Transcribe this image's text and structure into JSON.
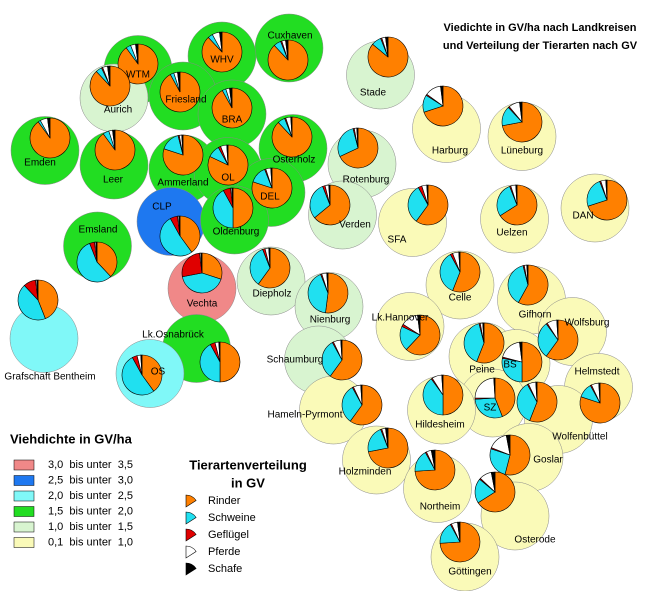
{
  "title_lines": [
    "Viedichte in GV/ha nach Landkreisen",
    "und Verteilung der Tierarten nach GV"
  ],
  "density_legend": {
    "title": "Viehdichte in GV/ha",
    "classes": [
      {
        "label": "3,0  bis unter  3,5",
        "color": "#f08888"
      },
      {
        "label": "2,5  bis unter  3,0",
        "color": "#1e78f0"
      },
      {
        "label": "2,0  bis unter  2,5",
        "color": "#80f8f8"
      },
      {
        "label": "1,5  bis unter  2,0",
        "color": "#22dd22"
      },
      {
        "label": "1,0  bis unter  1,5",
        "color": "#d8f4d0"
      },
      {
        "label": "0,1  bis unter  1,0",
        "color": "#fafab8"
      }
    ]
  },
  "species_legend": {
    "title_lines": [
      "Tierartenverteilung",
      "in GV"
    ],
    "species": [
      {
        "name": "Rinder",
        "color": "#ff8000"
      },
      {
        "name": "Schweine",
        "color": "#20e0f0"
      },
      {
        "name": "Geflügel",
        "color": "#e00000"
      },
      {
        "name": "Pferde",
        "color": "#ffffff"
      },
      {
        "name": "Schafe",
        "color": "#000000"
      }
    ]
  },
  "districts": [
    {
      "name": "Cuxhaven",
      "class": 3,
      "shares": [
        88,
        6,
        1,
        3,
        2
      ]
    },
    {
      "name": "WHV",
      "class": 3,
      "shares": [
        88,
        4,
        0,
        6,
        2
      ]
    },
    {
      "name": "WTM",
      "class": 3,
      "shares": [
        90,
        4,
        0,
        4,
        2
      ]
    },
    {
      "name": "Friesland",
      "class": 3,
      "shares": [
        92,
        3,
        0,
        3,
        2
      ]
    },
    {
      "name": "Aurich",
      "class": 4,
      "shares": [
        88,
        5,
        1,
        4,
        2
      ]
    },
    {
      "name": "Stade",
      "class": 4,
      "shares": [
        86,
        8,
        1,
        3,
        2
      ]
    },
    {
      "name": "BRA",
      "class": 3,
      "shares": [
        92,
        3,
        0,
        3,
        2
      ]
    },
    {
      "name": "Emden",
      "class": 3,
      "shares": [
        90,
        2,
        0,
        6,
        2
      ]
    },
    {
      "name": "Harburg",
      "class": 5,
      "shares": [
        70,
        14,
        1,
        13,
        2
      ]
    },
    {
      "name": "Lüneburg",
      "class": 5,
      "shares": [
        72,
        16,
        1,
        9,
        2
      ]
    },
    {
      "name": "Osterholz",
      "class": 3,
      "shares": [
        88,
        6,
        1,
        4,
        1
      ]
    },
    {
      "name": "Rotenburg",
      "class": 4,
      "shares": [
        68,
        28,
        1,
        2,
        1
      ]
    },
    {
      "name": "Leer",
      "class": 3,
      "shares": [
        90,
        5,
        0,
        3,
        2
      ]
    },
    {
      "name": "Ammerland",
      "class": 3,
      "shares": [
        80,
        16,
        1,
        2,
        1
      ]
    },
    {
      "name": "OL",
      "class": 3,
      "shares": [
        82,
        10,
        2,
        5,
        1
      ]
    },
    {
      "name": "DEL",
      "class": 3,
      "shares": [
        80,
        14,
        1,
        4,
        1
      ]
    },
    {
      "name": "CLP",
      "class": 1,
      "shares": [
        40,
        52,
        6,
        1,
        1
      ]
    },
    {
      "name": "Emsland",
      "class": 3,
      "shares": [
        38,
        56,
        4,
        1,
        1
      ]
    },
    {
      "name": "Oldenburg",
      "class": 3,
      "shares": [
        50,
        42,
        6,
        1,
        1
      ]
    },
    {
      "name": "Verden",
      "class": 4,
      "shares": [
        64,
        30,
        2,
        3,
        1
      ]
    },
    {
      "name": "SFA",
      "class": 5,
      "shares": [
        60,
        32,
        3,
        4,
        1
      ]
    },
    {
      "name": "Uelzen",
      "class": 5,
      "shares": [
        66,
        28,
        1,
        4,
        1
      ]
    },
    {
      "name": "DAN",
      "class": 5,
      "shares": [
        70,
        24,
        1,
        4,
        1
      ]
    },
    {
      "name": "Celle",
      "class": 5,
      "shares": [
        56,
        36,
        2,
        5,
        1
      ]
    },
    {
      "name": "Vechta",
      "class": 0,
      "shares": [
        30,
        42,
        26,
        1,
        1
      ]
    },
    {
      "name": "Diepholz",
      "class": 4,
      "shares": [
        60,
        34,
        2,
        3,
        1
      ]
    },
    {
      "name": "Grafschaft Bentheim",
      "class": 2,
      "shares": [
        44,
        44,
        10,
        1,
        1
      ]
    },
    {
      "name": "Nienburg",
      "class": 4,
      "shares": [
        52,
        42,
        1,
        4,
        1
      ]
    },
    {
      "name": "Gifhorn",
      "class": 5,
      "shares": [
        58,
        38,
        1,
        2,
        1
      ]
    },
    {
      "name": "Lk.Osnabrück",
      "class": 3,
      "shares": [
        50,
        42,
        4,
        3,
        1
      ]
    },
    {
      "name": "OS",
      "class": 2,
      "shares": [
        40,
        52,
        4,
        3,
        1
      ]
    },
    {
      "name": "Lk.Hannover",
      "class": 5,
      "shares": [
        62,
        20,
        2,
        14,
        2
      ]
    },
    {
      "name": "Wolfsburg",
      "class": 5,
      "shares": [
        60,
        30,
        1,
        8,
        1
      ]
    },
    {
      "name": "Schaumburg",
      "class": 4,
      "shares": [
        60,
        32,
        1,
        6,
        1
      ]
    },
    {
      "name": "Peine",
      "class": 5,
      "shares": [
        56,
        40,
        1,
        2,
        1
      ]
    },
    {
      "name": "BS",
      "class": 5,
      "shares": [
        50,
        28,
        1,
        19,
        2
      ]
    },
    {
      "name": "Helmstedt",
      "class": 5,
      "shares": [
        80,
        12,
        1,
        6,
        1
      ]
    },
    {
      "name": "Hameln-Pyrmont",
      "class": 5,
      "shares": [
        60,
        32,
        1,
        6,
        1
      ]
    },
    {
      "name": "SZ",
      "class": 5,
      "shares": [
        44,
        30,
        1,
        24,
        1
      ]
    },
    {
      "name": "Hildesheim",
      "class": 5,
      "shares": [
        50,
        40,
        1,
        8,
        1
      ]
    },
    {
      "name": "Wolfenbüttel",
      "class": 5,
      "shares": [
        56,
        36,
        1,
        6,
        1
      ]
    },
    {
      "name": "Holzminden",
      "class": 5,
      "shares": [
        72,
        22,
        1,
        3,
        2
      ]
    },
    {
      "name": "Goslar",
      "class": 5,
      "shares": [
        54,
        26,
        1,
        16,
        3
      ]
    },
    {
      "name": "Northeim",
      "class": 5,
      "shares": [
        74,
        18,
        1,
        4,
        3
      ]
    },
    {
      "name": "Osterode",
      "class": 5,
      "shares": [
        66,
        20,
        1,
        10,
        3
      ]
    },
    {
      "name": "Göttingen",
      "class": 5,
      "shares": [
        74,
        18,
        1,
        5,
        2
      ]
    }
  ]
}
